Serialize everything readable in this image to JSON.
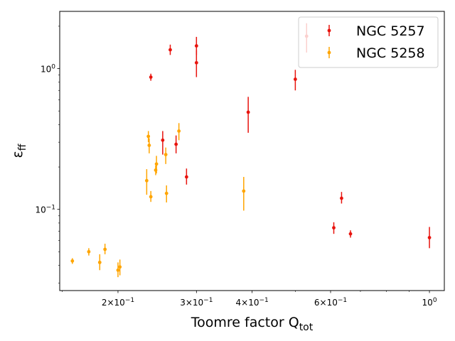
{
  "chart_data": {
    "type": "scatter",
    "title": "",
    "xlabel": "Toomre factor Q",
    "xlabel_sub": "tot",
    "ylabel": "ε",
    "ylabel_sub": "ff",
    "xscale": "log",
    "yscale": "log",
    "xlim": [
      0.148,
      1.08
    ],
    "ylim": [
      0.0265,
      2.55
    ],
    "grid": false,
    "legend_position": "top-right",
    "x_ticks": [
      {
        "value": 0.2,
        "mantissa": "2",
        "base": "10",
        "exp": "−1"
      },
      {
        "value": 0.3,
        "mantissa": "3",
        "base": "10",
        "exp": "−1"
      },
      {
        "value": 0.4,
        "mantissa": "4",
        "base": "10",
        "exp": "−1"
      },
      {
        "value": 0.6,
        "mantissa": "6",
        "base": "10",
        "exp": "−1"
      },
      {
        "value": 1.0,
        "mantissa": "",
        "base": "10",
        "exp": "0"
      }
    ],
    "y_ticks": [
      {
        "value": 0.1,
        "base": "10",
        "exp": "−1"
      },
      {
        "value": 1.0,
        "base": "10",
        "exp": "0"
      }
    ],
    "series": [
      {
        "name": "NGC 5257",
        "color": "#e8140e",
        "points": [
          {
            "x": 0.237,
            "y": 0.87,
            "lo": 0.82,
            "hi": 0.92
          },
          {
            "x": 0.262,
            "y": 1.36,
            "lo": 1.25,
            "hi": 1.48
          },
          {
            "x": 0.3,
            "y": 1.45,
            "lo": 1.25,
            "hi": 1.68
          },
          {
            "x": 0.3,
            "y": 1.1,
            "lo": 0.87,
            "hi": 1.35
          },
          {
            "x": 0.252,
            "y": 0.31,
            "lo": 0.245,
            "hi": 0.36
          },
          {
            "x": 0.27,
            "y": 0.29,
            "lo": 0.25,
            "hi": 0.335
          },
          {
            "x": 0.285,
            "y": 0.17,
            "lo": 0.15,
            "hi": 0.195
          },
          {
            "x": 0.392,
            "y": 0.49,
            "lo": 0.35,
            "hi": 0.63
          },
          {
            "x": 0.5,
            "y": 0.84,
            "lo": 0.7,
            "hi": 0.98
          },
          {
            "x": 0.53,
            "y": 1.7,
            "lo": 1.3,
            "hi": 2.1
          },
          {
            "x": 0.635,
            "y": 0.12,
            "lo": 0.11,
            "hi": 0.133
          },
          {
            "x": 0.61,
            "y": 0.074,
            "lo": 0.067,
            "hi": 0.081
          },
          {
            "x": 0.665,
            "y": 0.067,
            "lo": 0.063,
            "hi": 0.071
          },
          {
            "x": 1.0,
            "y": 0.063,
            "lo": 0.053,
            "hi": 0.075
          }
        ]
      },
      {
        "name": "NGC 5258",
        "color": "#ffa500",
        "points": [
          {
            "x": 0.158,
            "y": 0.043,
            "lo": 0.041,
            "hi": 0.045
          },
          {
            "x": 0.172,
            "y": 0.05,
            "lo": 0.047,
            "hi": 0.053
          },
          {
            "x": 0.182,
            "y": 0.042,
            "lo": 0.037,
            "hi": 0.048
          },
          {
            "x": 0.187,
            "y": 0.052,
            "lo": 0.048,
            "hi": 0.057
          },
          {
            "x": 0.2,
            "y": 0.037,
            "lo": 0.033,
            "hi": 0.042
          },
          {
            "x": 0.202,
            "y": 0.039,
            "lo": 0.034,
            "hi": 0.044
          },
          {
            "x": 0.232,
            "y": 0.16,
            "lo": 0.127,
            "hi": 0.193
          },
          {
            "x": 0.234,
            "y": 0.33,
            "lo": 0.3,
            "hi": 0.36
          },
          {
            "x": 0.235,
            "y": 0.285,
            "lo": 0.25,
            "hi": 0.32
          },
          {
            "x": 0.237,
            "y": 0.123,
            "lo": 0.113,
            "hi": 0.135
          },
          {
            "x": 0.243,
            "y": 0.19,
            "lo": 0.175,
            "hi": 0.205
          },
          {
            "x": 0.244,
            "y": 0.21,
            "lo": 0.18,
            "hi": 0.24
          },
          {
            "x": 0.256,
            "y": 0.245,
            "lo": 0.21,
            "hi": 0.275
          },
          {
            "x": 0.257,
            "y": 0.13,
            "lo": 0.112,
            "hi": 0.148
          },
          {
            "x": 0.274,
            "y": 0.36,
            "lo": 0.31,
            "hi": 0.41
          },
          {
            "x": 0.383,
            "y": 0.135,
            "lo": 0.098,
            "hi": 0.17
          }
        ]
      }
    ]
  }
}
